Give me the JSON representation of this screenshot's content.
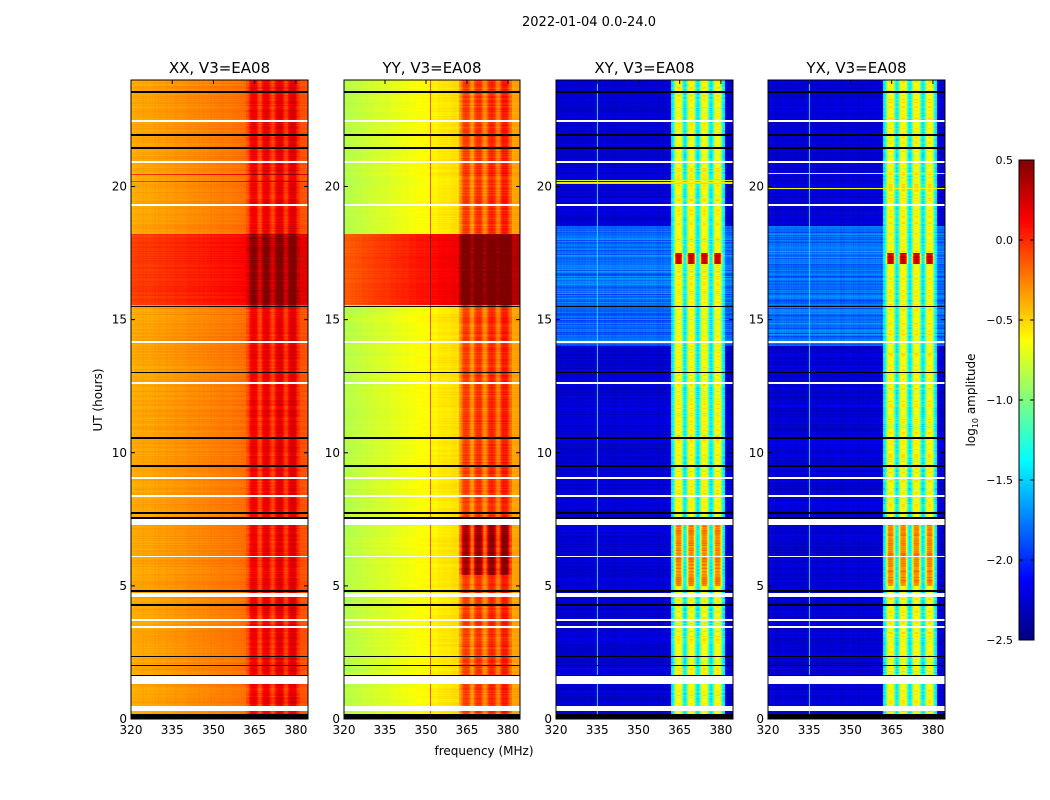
{
  "chart_data": {
    "type": "heatmap",
    "title": "2022-01-04 0.0-24.0",
    "xlabel": "frequency (MHz)",
    "ylabel": "UT (hours)",
    "xlim": [
      320,
      384.4
    ],
    "ylim": [
      0,
      24
    ],
    "xticks": [
      320,
      335,
      350,
      365,
      380
    ],
    "yticks": [
      0,
      5,
      10,
      15,
      20
    ],
    "panels": [
      {
        "title": "XX, V3=EA08",
        "pol": "XX"
      },
      {
        "title": "YY, V3=EA08",
        "pol": "YY"
      },
      {
        "title": "XY, V3=EA08",
        "pol": "XY"
      },
      {
        "title": "YX, V3=EA08",
        "pol": "YX"
      }
    ],
    "colorbar": {
      "label_prefix": "log",
      "label_sub": "10",
      "label_suffix": " amplitude",
      "range": [
        -2.5,
        0.5
      ],
      "ticks": [
        0.5,
        0.0,
        -0.5,
        -1.0,
        -1.5,
        -2.0,
        -2.5
      ],
      "tick_labels": [
        "0.5",
        "0.0",
        "−0.5",
        "−1.0",
        "−1.5",
        "−2.0",
        "−2.5"
      ],
      "colormap": "jet"
    },
    "flagged_white_hours": [
      [
        0.3,
        0.5
      ],
      [
        1.3,
        1.6
      ],
      [
        3.42,
        3.5
      ],
      [
        3.68,
        3.75
      ],
      [
        4.6,
        4.75
      ],
      [
        6.08,
        6.13
      ],
      [
        7.3,
        7.5
      ],
      [
        8.33,
        8.4
      ],
      [
        9.03,
        9.1
      ],
      [
        12.57,
        12.65
      ],
      [
        14.12,
        14.18
      ],
      [
        19.28,
        19.33
      ],
      [
        20.88,
        20.95
      ],
      [
        22.42,
        22.5
      ]
    ],
    "black_rows_hours": [
      [
        0,
        0.2
      ],
      [
        1.6,
        1.66
      ],
      [
        1.98,
        2.04
      ],
      [
        2.32,
        2.37
      ],
      [
        4.26,
        4.31
      ],
      [
        4.78,
        4.83
      ],
      [
        7.53,
        7.58
      ],
      [
        7.7,
        7.76
      ],
      [
        9.48,
        9.53
      ],
      [
        10.52,
        10.58
      ],
      [
        12.98,
        13.04
      ],
      [
        15.47,
        15.52
      ],
      [
        21.41,
        21.47
      ],
      [
        21.9,
        21.96
      ],
      [
        23.52,
        23.58
      ]
    ]
  }
}
